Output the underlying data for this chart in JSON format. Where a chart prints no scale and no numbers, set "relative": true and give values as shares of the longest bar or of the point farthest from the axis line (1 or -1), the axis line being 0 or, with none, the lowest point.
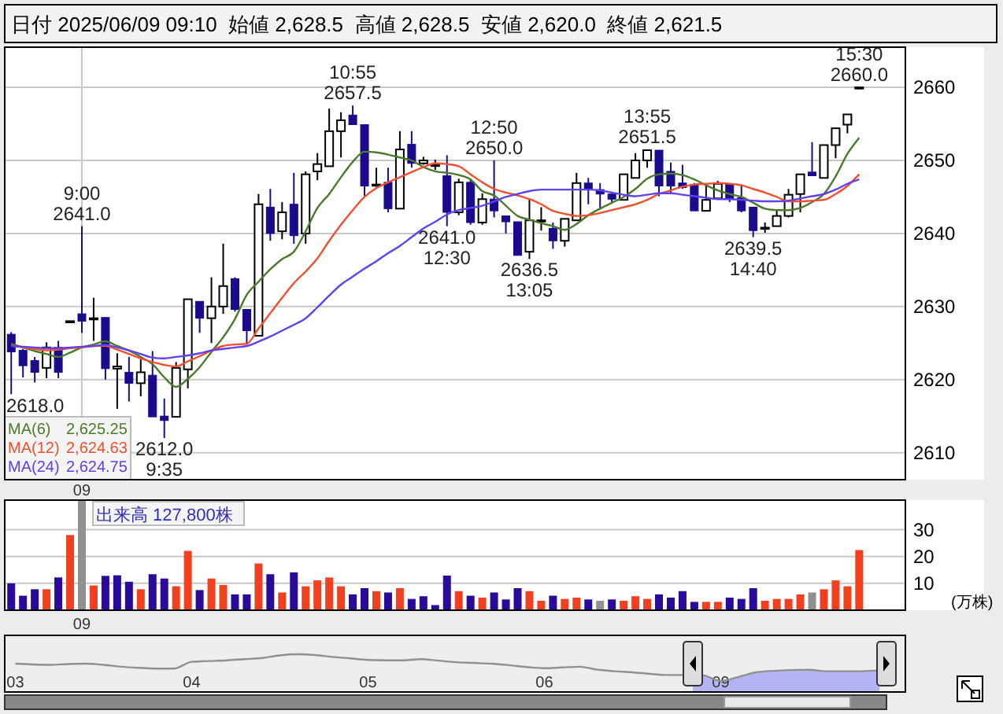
{
  "chart_data": [
    {
      "type": "candlestick",
      "title": "日付 2025/06/09 09:10  始値 2,628.5  高値 2,628.5  安値 2,620.0  終値 2,621.5",
      "categories": [
        null,
        null,
        null,
        null,
        null,
        null,
        "09",
        null,
        null,
        null,
        null,
        null,
        null,
        null,
        null,
        null,
        null,
        null,
        null,
        null,
        null,
        null,
        null,
        null,
        null,
        null,
        null,
        null,
        null,
        null,
        null,
        null,
        null,
        null,
        null,
        null,
        null,
        null,
        null,
        null,
        null,
        null,
        null,
        null,
        null,
        null,
        null,
        null,
        null,
        null,
        null,
        null,
        null,
        null,
        null,
        null,
        null,
        null,
        null,
        null,
        null,
        null,
        null,
        null,
        null,
        null,
        null,
        null,
        null,
        null,
        null,
        null,
        null
      ],
      "ohlc": [
        [
          2626.2,
          2626.5,
          2618.0,
          2623.8
        ],
        [
          2624.0,
          2624.2,
          2620.3,
          2621.9
        ],
        [
          2622.6,
          2623.1,
          2619.6,
          2621.0
        ],
        [
          2621.6,
          2625.1,
          2620.2,
          2624.4
        ],
        [
          2624.4,
          2625.3,
          2620.2,
          2621.0
        ],
        [
          2628.0,
          2628.0,
          2628.0,
          2628.0
        ],
        [
          2629.0,
          2641.0,
          2626.4,
          2628.0
        ],
        [
          2628.4,
          2631.2,
          2625.3,
          2628.4
        ],
        [
          2628.5,
          2628.5,
          2620.0,
          2621.5
        ],
        [
          2621.5,
          2623.6,
          2616.0,
          2621.8
        ],
        [
          2621.0,
          2623.1,
          2617.0,
          2619.5
        ],
        [
          2619.5,
          2623.1,
          2617.7,
          2621.0
        ],
        [
          2620.6,
          2623.9,
          2614.9,
          2614.9
        ],
        [
          2615.0,
          2617.4,
          2612.0,
          2614.4
        ],
        [
          2614.9,
          2622.4,
          2614.9,
          2621.6
        ],
        [
          2621.4,
          2631.0,
          2618.8,
          2631.0
        ],
        [
          2630.7,
          2630.7,
          2626.4,
          2628.4
        ],
        [
          2628.4,
          2634.0,
          2625.0,
          2630.0
        ],
        [
          2630.0,
          2638.6,
          2629.0,
          2632.8
        ],
        [
          2633.8,
          2634.0,
          2629.3,
          2629.6
        ],
        [
          2629.6,
          2629.6,
          2624.9,
          2626.7
        ],
        [
          2626.0,
          2645.4,
          2626.0,
          2644.0
        ],
        [
          2643.6,
          2646.1,
          2639.0,
          2640.0
        ],
        [
          2640.3,
          2644.3,
          2639.2,
          2642.9
        ],
        [
          2644.0,
          2648.3,
          2638.6,
          2639.7
        ],
        [
          2640.0,
          2648.5,
          2638.6,
          2648.1
        ],
        [
          2648.5,
          2651.0,
          2647.3,
          2649.5
        ],
        [
          2649.2,
          2657.1,
          2649.2,
          2654.0
        ],
        [
          2654.0,
          2656.6,
          2650.4,
          2655.5
        ],
        [
          2656.2,
          2657.5,
          2654.9,
          2654.9
        ],
        [
          2654.9,
          2654.9,
          2645.1,
          2646.5
        ],
        [
          2646.7,
          2649.0,
          2646.4,
          2646.7
        ],
        [
          2647.0,
          2649.0,
          2642.9,
          2643.4
        ],
        [
          2643.4,
          2654.0,
          2643.4,
          2651.5
        ],
        [
          2652.2,
          2654.0,
          2649.0,
          2649.6
        ],
        [
          2649.6,
          2650.5,
          2649.4,
          2650.0
        ],
        [
          2649.4,
          2650.1,
          2648.7,
          2649.4
        ],
        [
          2647.9,
          2650.7,
          2641.0,
          2642.9
        ],
        [
          2642.9,
          2647.5,
          2642.5,
          2647.0
        ],
        [
          2647.0,
          2647.5,
          2641.2,
          2641.5
        ],
        [
          2641.5,
          2645.5,
          2641.2,
          2644.7
        ],
        [
          2644.7,
          2650.0,
          2642.2,
          2643.1
        ],
        [
          2642.4,
          2642.4,
          2640.0,
          2641.6
        ],
        [
          2641.6,
          2641.6,
          2637.0,
          2637.0
        ],
        [
          2637.5,
          2644.7,
          2636.5,
          2641.8
        ],
        [
          2641.8,
          2643.6,
          2640.4,
          2641.8
        ],
        [
          2640.7,
          2641.5,
          2637.9,
          2639.0
        ],
        [
          2639.0,
          2642.0,
          2638.2,
          2642.0
        ],
        [
          2641.8,
          2648.3,
          2641.8,
          2646.9
        ],
        [
          2646.9,
          2647.6,
          2644.0,
          2646.1
        ],
        [
          2646.0,
          2646.9,
          2643.3,
          2645.4
        ],
        [
          2645.4,
          2645.4,
          2644.3,
          2644.7
        ],
        [
          2644.6,
          2648.1,
          2644.6,
          2648.1
        ],
        [
          2647.6,
          2651.0,
          2647.6,
          2650.0
        ],
        [
          2650.0,
          2651.5,
          2649.0,
          2651.4
        ],
        [
          2651.4,
          2651.4,
          2645.1,
          2646.5
        ],
        [
          2648.5,
          2649.7,
          2645.4,
          2646.5
        ],
        [
          2646.9,
          2649.4,
          2646.1,
          2646.3
        ],
        [
          2646.7,
          2646.9,
          2643.1,
          2643.1
        ],
        [
          2643.1,
          2646.7,
          2643.1,
          2644.6
        ],
        [
          2644.8,
          2647.2,
          2644.6,
          2646.8
        ],
        [
          2646.8,
          2646.8,
          2644.3,
          2644.7
        ],
        [
          2644.9,
          2646.7,
          2642.9,
          2643.1
        ],
        [
          2643.6,
          2643.6,
          2639.5,
          2640.4
        ],
        [
          2640.8,
          2641.5,
          2640.1,
          2640.8
        ],
        [
          2641.0,
          2643.3,
          2641.0,
          2642.4
        ],
        [
          2642.4,
          2646.1,
          2642.2,
          2645.3
        ],
        [
          2645.4,
          2648.1,
          2642.9,
          2648.1
        ],
        [
          2648.4,
          2652.5,
          2647.9,
          2647.9
        ],
        [
          2647.6,
          2652.1,
          2647.6,
          2652.1
        ],
        [
          2652.1,
          2654.4,
          2650.3,
          2654.4
        ],
        [
          2654.9,
          2656.3,
          2653.7,
          2656.3
        ],
        [
          2660.0,
          2660.0,
          2660.0,
          2660.0
        ]
      ],
      "series": [
        {
          "name": "MA(6)",
          "type": "line",
          "color": "#4a7a2a",
          "values": [
            2624.9,
            2624.4,
            2623.9,
            2623.5,
            2623.1,
            2623.7,
            2624.4,
            2624.8,
            2625.25,
            2624.6,
            2624.0,
            2623.1,
            2622.1,
            2620.3,
            2619.0,
            2620.1,
            2621.7,
            2623.8,
            2625.8,
            2628.3,
            2631.6,
            2633.4,
            2635.1,
            2636.5,
            2637.5,
            2640.3,
            2643.5,
            2645.4,
            2647.7,
            2649.8,
            2651.2,
            2651.1,
            2650.8,
            2650.4,
            2650.0,
            2649.1,
            2648.5,
            2648.3,
            2648.0,
            2647.4,
            2645.8,
            2645.2,
            2643.8,
            2642.4,
            2641.9,
            2641.4,
            2641.0,
            2640.5,
            2641.3,
            2642.5,
            2643.4,
            2644.2,
            2645.0,
            2646.1,
            2647.5,
            2648.1,
            2648.2,
            2648.0,
            2647.4,
            2646.6,
            2645.9,
            2645.4,
            2645.0,
            2644.2,
            2643.4,
            2643.2,
            2643.2,
            2643.5,
            2644.3,
            2645.4,
            2647.8,
            2650.9,
            2653.1
          ]
        },
        {
          "name": "MA(12)",
          "type": "line",
          "color": "#f05030",
          "values": [
            2624.7,
            2624.4,
            2624.2,
            2624.0,
            2624.1,
            2624.3,
            2624.4,
            2624.6,
            2624.63,
            2624.1,
            2623.5,
            2622.9,
            2622.4,
            2622.0,
            2621.8,
            2622.5,
            2623.2,
            2624.0,
            2624.6,
            2624.8,
            2624.9,
            2627.0,
            2629.1,
            2631.2,
            2633.2,
            2634.8,
            2636.6,
            2639.0,
            2641.2,
            2643.2,
            2645.0,
            2646.2,
            2647.0,
            2647.7,
            2648.4,
            2649.1,
            2649.6,
            2649.5,
            2649.2,
            2648.1,
            2647.0,
            2646.1,
            2645.6,
            2645.2,
            2644.7,
            2644.0,
            2643.1,
            2642.7,
            2642.4,
            2642.5,
            2642.8,
            2643.2,
            2643.6,
            2644.0,
            2644.6,
            2645.4,
            2645.9,
            2646.4,
            2646.7,
            2646.8,
            2646.9,
            2646.8,
            2646.6,
            2646.1,
            2645.6,
            2645.0,
            2644.4,
            2644.4,
            2644.5,
            2644.6,
            2645.4,
            2646.5,
            2648.1
          ]
        },
        {
          "name": "MA(24)",
          "type": "line",
          "color": "#6040f0",
          "values": [
            2624.6,
            2624.5,
            2624.4,
            2624.3,
            2624.3,
            2624.4,
            2624.5,
            2624.6,
            2624.75,
            2624.4,
            2624.0,
            2623.5,
            2623.0,
            2622.9,
            2623.1,
            2623.3,
            2623.6,
            2624.0,
            2624.2,
            2624.4,
            2624.6,
            2625.2,
            2625.9,
            2626.7,
            2627.5,
            2628.4,
            2629.9,
            2631.5,
            2633.0,
            2634.1,
            2635.2,
            2636.2,
            2637.3,
            2638.3,
            2639.5,
            2640.7,
            2641.6,
            2642.6,
            2643.2,
            2643.5,
            2643.8,
            2644.4,
            2645.0,
            2645.4,
            2645.8,
            2646.0,
            2646.0,
            2646.0,
            2646.0,
            2646.0,
            2645.9,
            2645.6,
            2645.3,
            2645.1,
            2645.3,
            2645.5,
            2645.5,
            2645.3,
            2645.1,
            2644.9,
            2644.7,
            2644.7,
            2644.6,
            2644.5,
            2644.4,
            2644.4,
            2644.5,
            2644.8,
            2645.1,
            2645.4,
            2646.0,
            2646.8,
            2647.4
          ]
        }
      ],
      "ylim": [
        2606.3,
        2665.5
      ],
      "yticks": [
        2610,
        2620,
        2630,
        2640,
        2650,
        2660
      ],
      "grid": true,
      "legend": "bottom left",
      "annotations": [
        "2,625.25",
        "2,624.63",
        "2,624.75",
        "2618.0",
        {
          "text": "9:00\n2641.0",
          "x": "09",
          "y": 2641.0
        },
        {
          "text": "2612.0\n9:35",
          "y": 2612.0
        },
        {
          "text": "10:55\n2657.5",
          "y": 2657.5
        },
        {
          "text": "2641.0\n12:30",
          "y": 2641.0
        },
        {
          "text": "12:50\n2650.0",
          "y": 2650.0
        },
        {
          "text": "2636.5\n13:05",
          "y": 2636.5
        },
        {
          "text": "13:55\n2651.5",
          "y": 2651.5
        },
        {
          "text": "2639.5\n14:40",
          "y": 2639.5
        },
        {
          "text": "15:30\n2660.0",
          "y": 2660.0
        }
      ]
    },
    {
      "type": "bar",
      "title": "出来高 127,800株",
      "ylabel": "(万株)",
      "categories": [
        null,
        null,
        null,
        null,
        null,
        null,
        "09",
        null,
        null,
        null,
        null,
        null,
        null,
        null,
        null,
        null,
        null,
        null,
        null,
        null,
        null,
        null,
        null,
        null,
        null,
        null,
        null,
        null,
        null,
        null,
        null,
        null,
        null,
        null,
        null,
        null,
        null,
        null,
        null,
        null,
        null,
        null,
        null,
        null,
        null,
        null,
        null,
        null,
        null,
        null,
        null,
        null,
        null,
        null,
        null,
        null,
        null,
        null,
        null,
        null,
        null,
        null,
        null,
        null,
        null,
        null,
        null,
        null,
        null,
        null,
        null,
        null,
        null
      ],
      "values": [
        10,
        5.4,
        7.8,
        7.8,
        12.2,
        28,
        41,
        9.2,
        12.78,
        13,
        10.6,
        7.8,
        13.4,
        11.8,
        8.9,
        22.1,
        7.5,
        11.8,
        9.4,
        5.9,
        5.9,
        17.4,
        13.4,
        6.6,
        14.1,
        8.9,
        11.1,
        12.2,
        8.9,
        5.9,
        8.2,
        7.1,
        6.6,
        8.2,
        4.2,
        5.2,
        1.9,
        12.9,
        7.1,
        5.4,
        4.7,
        6.6,
        4.0,
        8.2,
        7.1,
        3.5,
        5.4,
        4.2,
        4.7,
        4.0,
        3.5,
        4.0,
        3.5,
        5.2,
        4.2,
        5.9,
        4.7,
        7.1,
        3.1,
        3.1,
        3.1,
        4.7,
        4.2,
        8.2,
        3.5,
        4.2,
        4.2,
        5.9,
        6.6,
        7.8,
        11.1,
        8.9,
        22.4
      ],
      "colors": [
        "#2a0a9a",
        "#2a0a9a",
        "#2a0a9a",
        "#f04020",
        "#2a0a9a",
        "#f04020",
        "#909090",
        "#f04020",
        "#2a0a9a",
        "#2a0a9a",
        "#2a0a9a",
        "#f04020",
        "#2a0a9a",
        "#2a0a9a",
        "#f04020",
        "#f04020",
        "#2a0a9a",
        "#f04020",
        "#f04020",
        "#2a0a9a",
        "#2a0a9a",
        "#f04020",
        "#2a0a9a",
        "#f04020",
        "#2a0a9a",
        "#f04020",
        "#f04020",
        "#f04020",
        "#f04020",
        "#2a0a9a",
        "#2a0a9a",
        "#f04020",
        "#2a0a9a",
        "#f04020",
        "#2a0a9a",
        "#2a0a9a",
        "#2a0a9a",
        "#2a0a9a",
        "#f04020",
        "#2a0a9a",
        "#f04020",
        "#2a0a9a",
        "#2a0a9a",
        "#2a0a9a",
        "#f04020",
        "#f04020",
        "#2a0a9a",
        "#f04020",
        "#f04020",
        "#2a0a9a",
        "#909090",
        "#2a0a9a",
        "#f04020",
        "#f04020",
        "#f04020",
        "#2a0a9a",
        "#2a0a9a",
        "#2a0a9a",
        "#2a0a9a",
        "#f04020",
        "#f04020",
        "#2a0a9a",
        "#2a0a9a",
        "#2a0a9a",
        "#f04020",
        "#f04020",
        "#f04020",
        "#f04020",
        "#909090",
        "#f04020",
        "#f04020",
        "#f04020",
        "#f04020"
      ],
      "ylim": [
        0,
        41
      ],
      "yticks": [
        10,
        20,
        30
      ],
      "grid": true
    },
    {
      "type": "line",
      "relative": true,
      "categories": [
        "03",
        null,
        null,
        null,
        null,
        null,
        null,
        null,
        null,
        null,
        "04",
        null,
        null,
        null,
        null,
        null,
        null,
        null,
        null,
        null,
        "05",
        null,
        null,
        null,
        null,
        null,
        null,
        null,
        null,
        null,
        "06",
        null,
        null,
        null,
        null,
        null,
        null,
        null,
        null,
        null,
        "09",
        null,
        null,
        null,
        null,
        null,
        null,
        null,
        null,
        null,
        null
      ],
      "series": [
        {
          "color": "#909090",
          "values": [
            0.75,
            0.73,
            0.72,
            0.74,
            0.75,
            0.72,
            0.67,
            0.64,
            0.62,
            0.62,
            0.8,
            0.82,
            0.84,
            0.87,
            0.9,
            0.97,
            1,
            0.98,
            0.93,
            0.89,
            0.85,
            0.84,
            0.84,
            0.87,
            0.83,
            0.79,
            0.77,
            0.75,
            0.71,
            0.66,
            0.63,
            0.65,
            0.67,
            0.59,
            0.55,
            0.52,
            0.48,
            0.45,
            0.45,
            0.44,
            0.29,
            0.4,
            0.52,
            0.56,
            0.58,
            0.59,
            0.55,
            0.55,
            0.55,
            0.58,
            null
          ]
        }
      ]
    }
  ]
}
